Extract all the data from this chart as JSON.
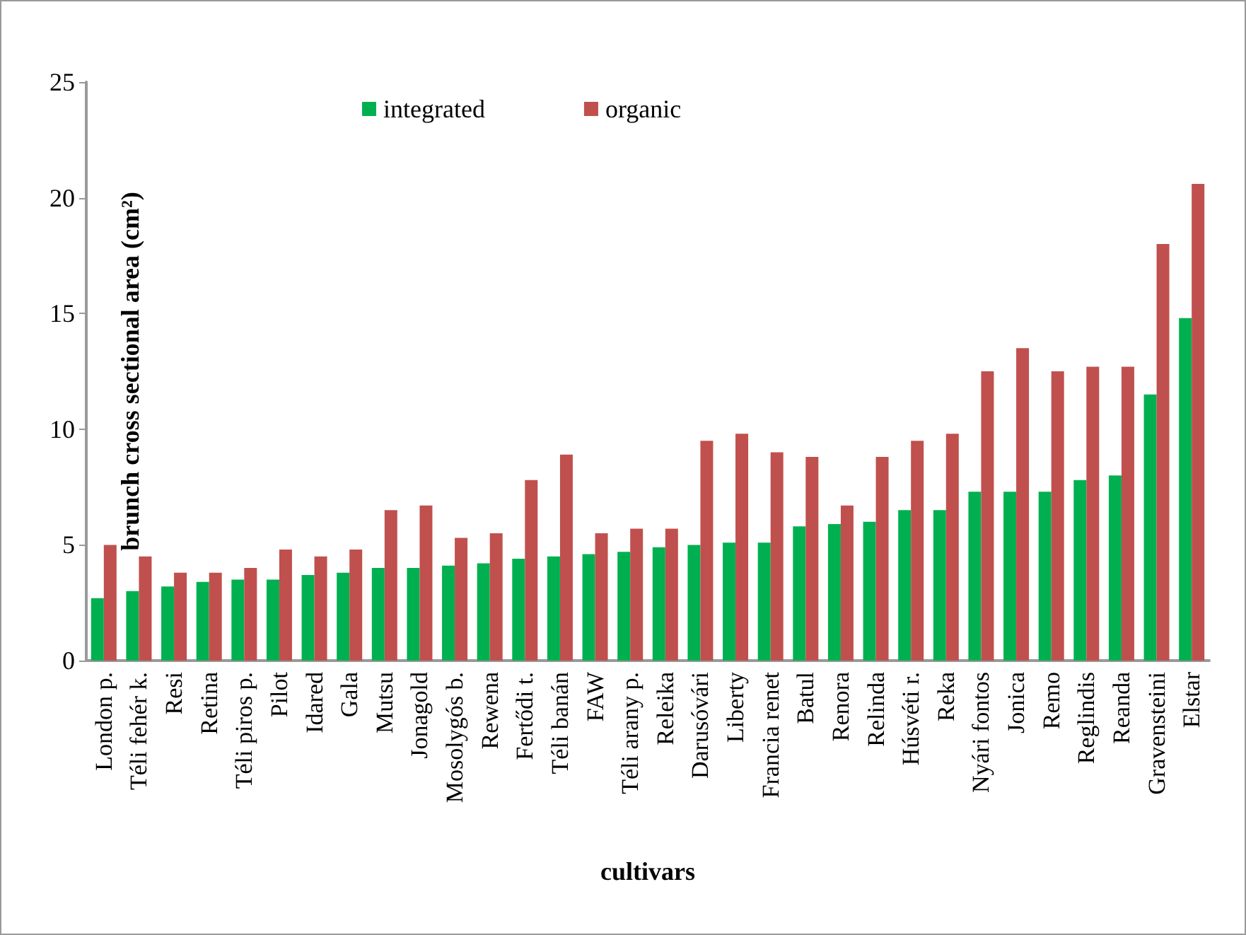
{
  "chart_data": {
    "type": "bar",
    "xlabel": "cultivars",
    "ylabel": "brunch cross sectional area (cm²)",
    "categories": [
      "London p.",
      "Téli fehér k.",
      "Resi",
      "Retina",
      "Téli piros p.",
      "Pilot",
      "Idared",
      "Gala",
      "Mutsu",
      "Jonagold",
      "Mosolygós b.",
      "Rewena",
      "Fertődi t.",
      "Téli banán",
      "FAW",
      "Téli arany p.",
      "Releika",
      "Darusóvári",
      "Liberty",
      "Francia renet",
      "Batul",
      "Renora",
      "Relinda",
      "Húsvéti r.",
      "Reka",
      "Nyári fontos",
      "Jonica",
      "Remo",
      "Reglindis",
      "Reanda",
      "Gravensteini",
      "Elstar"
    ],
    "series": [
      {
        "name": "integrated",
        "color": "#00b050",
        "values": [
          2.7,
          3.0,
          3.2,
          3.4,
          3.5,
          3.5,
          3.7,
          3.8,
          4.0,
          4.0,
          4.1,
          4.2,
          4.4,
          4.5,
          4.6,
          4.7,
          4.9,
          5.0,
          5.1,
          5.1,
          5.8,
          5.9,
          6.0,
          6.5,
          6.5,
          7.3,
          7.3,
          7.3,
          7.8,
          8.0,
          11.5,
          14.8
        ]
      },
      {
        "name": "organic",
        "color": "#c0504d",
        "values": [
          5.0,
          4.5,
          3.8,
          3.8,
          4.0,
          4.8,
          4.5,
          4.8,
          6.5,
          6.7,
          5.3,
          5.5,
          7.8,
          8.9,
          5.5,
          5.7,
          5.7,
          9.5,
          9.8,
          9.0,
          8.8,
          6.7,
          8.8,
          9.5,
          9.8,
          12.5,
          13.5,
          12.5,
          12.7,
          12.7,
          18.0,
          20.6
        ]
      }
    ],
    "ylim": [
      0,
      25
    ],
    "yticks": [
      0,
      5,
      10,
      15,
      20,
      25
    ],
    "legend": "top"
  }
}
